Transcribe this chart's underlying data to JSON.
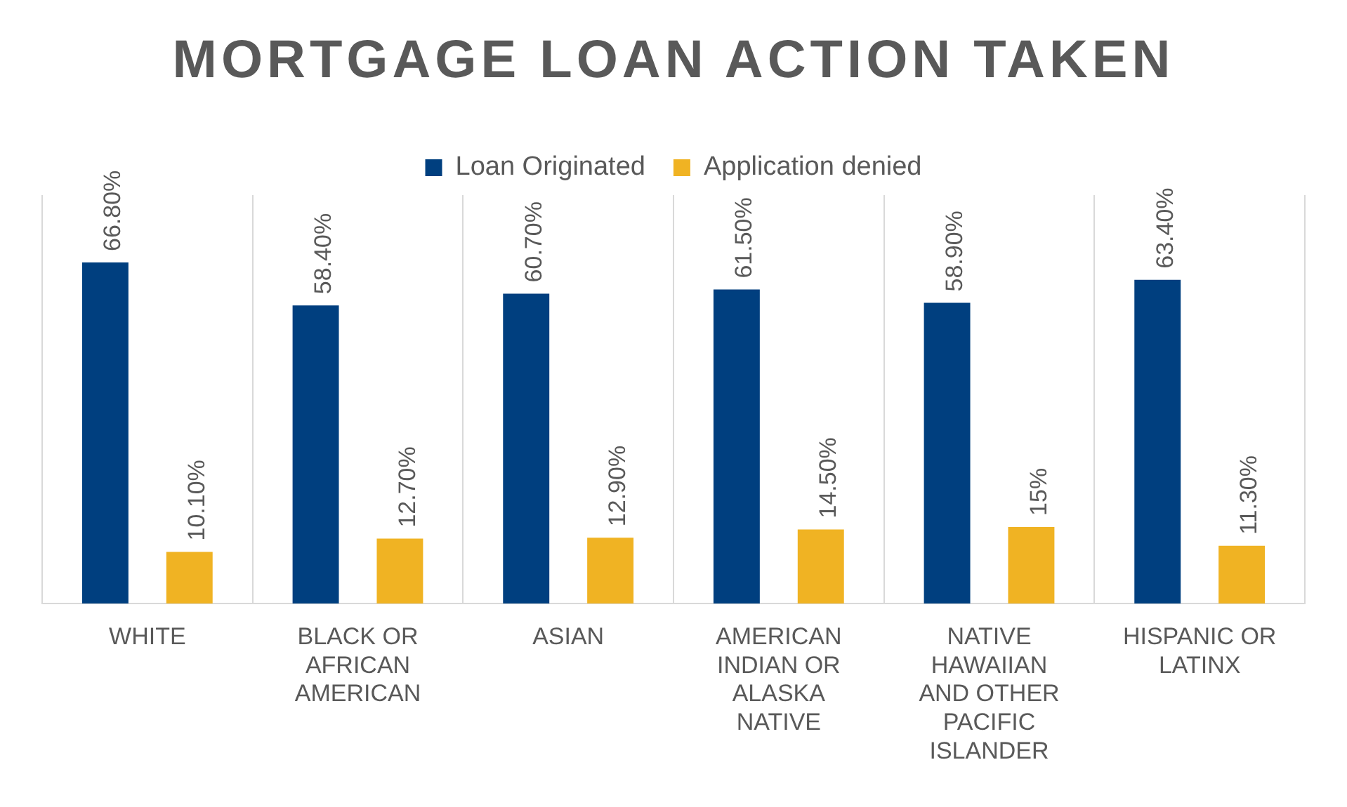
{
  "chart_data": {
    "type": "bar",
    "title": "MORTGAGE LOAN ACTION TAKEN",
    "categories": [
      "WHITE",
      "BLACK OR AFRICAN AMERICAN",
      "ASIAN",
      "AMERICAN INDIAN OR ALASKA NATIVE",
      "NATIVE HAWAIIAN AND OTHER PACIFIC ISLANDER",
      "HISPANIC OR LATINX"
    ],
    "series": [
      {
        "name": "Loan Originated",
        "color": "#003f7f",
        "values": [
          66.8,
          58.4,
          60.7,
          61.5,
          58.9,
          63.4
        ],
        "value_labels": [
          "66.80%",
          "58.40%",
          "60.70%",
          "61.50%",
          "58.90%",
          "63.40%"
        ]
      },
      {
        "name": "Application denied",
        "color": "#f0b323",
        "values": [
          10.1,
          12.7,
          12.9,
          14.5,
          15,
          11.3
        ],
        "value_labels": [
          "10.10%",
          "12.70%",
          "12.90%",
          "14.50%",
          "15%",
          "11.30%"
        ]
      }
    ],
    "grid": "x",
    "legend": "top"
  }
}
